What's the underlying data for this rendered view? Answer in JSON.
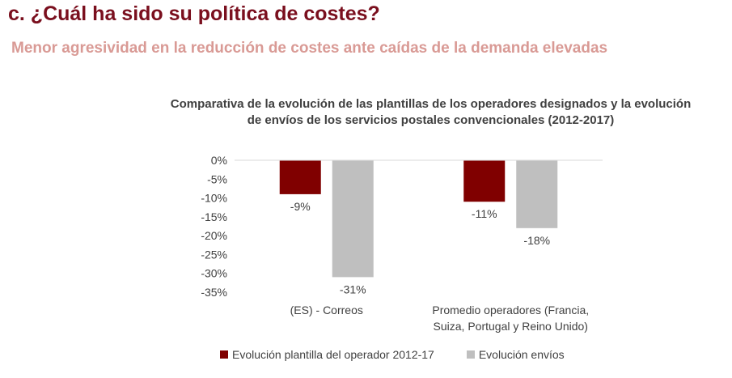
{
  "header": {
    "title": "c. ¿Cuál ha sido su política de costes?",
    "subtitle": "Menor agresividad en la reducción de costes ante caídas de la demanda elevadas"
  },
  "chart_data": {
    "type": "bar",
    "title_lines": [
      "Comparativa de la evolución de las plantillas de los operadores designados y la evolución",
      "de envíos de los servicios postales convencionales (2012-2017)"
    ],
    "categories": [
      [
        "(ES) - Correos"
      ],
      [
        "Promedio operadores (Francia,",
        "Suiza, Portugal y Reino Unido)"
      ]
    ],
    "series": [
      {
        "name": "Evolución plantilla del operador 2012-17",
        "color": "#800000",
        "values": [
          -9,
          -11
        ],
        "labels": [
          "-9%",
          "-11%"
        ]
      },
      {
        "name": "Evolución envíos",
        "color": "#bfbfbf",
        "values": [
          -31,
          -18
        ],
        "labels": [
          "-31%",
          "-18%"
        ]
      }
    ],
    "ylim": [
      -35,
      0
    ],
    "yticks": [
      0,
      -5,
      -10,
      -15,
      -20,
      -25,
      -30,
      -35
    ],
    "ytick_labels": [
      "0%",
      "-5%",
      "-10%",
      "-15%",
      "-20%",
      "-25%",
      "-30%",
      "-35%"
    ],
    "xlabel": "",
    "ylabel": "",
    "grid": false,
    "legend_position": "bottom"
  }
}
